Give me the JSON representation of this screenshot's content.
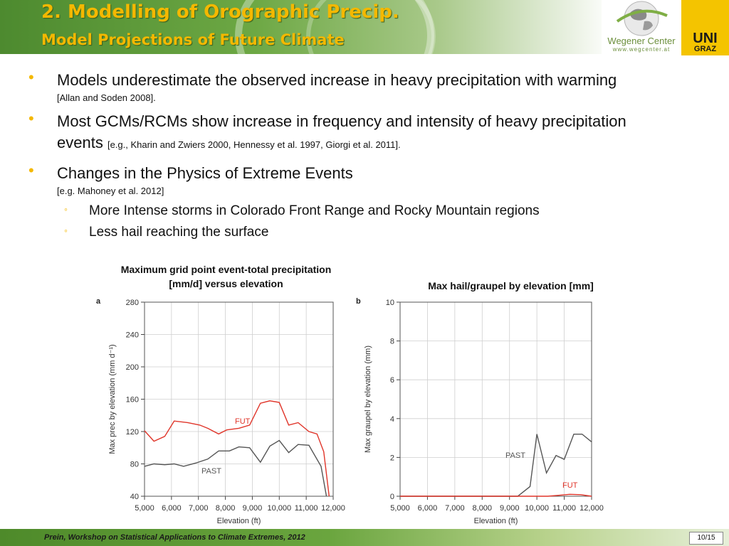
{
  "header": {
    "title_line1": "2. Modelling of Orographic Precip.",
    "title_line2": "Model Projections of Future Climate",
    "logo_name": "Wegener Center",
    "logo_url": "www.wegcenter.at",
    "uni_line1": "UNI",
    "uni_line2": "GRAZ"
  },
  "bullets": [
    {
      "text": "Models underestimate the observed increase in heavy precipitation with warming",
      "ref": "[Allan and Soden 2008]."
    },
    {
      "text": "Most GCMs/RCMs show increase in frequency and intensity of heavy precipitation events",
      "ref": "[e.g., Kharin and Zwiers 2000, Hennessy et al. 1997, Giorgi et al. 2011]."
    },
    {
      "text": "Changes in the Physics of Extreme Events",
      "ref": "[e.g. Mahoney et al. 2012]"
    }
  ],
  "sub_bullets": [
    "More Intense storms in Colorado Front Range and Rocky Mountain regions",
    "Less hail reaching the surface"
  ],
  "chart_titles": {
    "a_line1": "Maximum grid point event-total precipitation",
    "a_line2": "[mm/d] versus elevation",
    "b": "Max hail/graupel by elevation [mm]"
  },
  "footer": {
    "text": "Prein, Workshop on Statistical Applications to Climate Extremes, 2012",
    "page": "10/15"
  },
  "colors": {
    "past": "#555555",
    "fut": "#e0352a",
    "accent": "#f4b800"
  },
  "chart_data": [
    {
      "type": "line",
      "panel": "a",
      "xlabel": "Elevation (ft)",
      "ylabel": "Max prec by elevation (mm d⁻¹)",
      "xlim": [
        5000,
        12000
      ],
      "ylim": [
        40,
        280
      ],
      "xticks": [
        "5,000",
        "6,000",
        "7,000",
        "8,000",
        "9,000",
        "10,000",
        "11,000",
        "12,000"
      ],
      "yticks": [
        "40",
        "80",
        "120",
        "160",
        "200",
        "240",
        "280"
      ],
      "grid": true,
      "series": [
        {
          "name": "FUT",
          "x": [
            5000,
            5350,
            5750,
            6100,
            6600,
            7050,
            7350,
            7750,
            8050,
            8500,
            8900,
            9300,
            9650,
            10000,
            10350,
            10700,
            11100,
            11400,
            11650,
            11850
          ],
          "y": [
            121,
            108,
            114,
            133,
            131,
            128,
            124,
            117,
            122,
            124,
            128,
            155,
            158,
            156,
            128,
            131,
            120,
            117,
            95,
            40
          ]
        },
        {
          "name": "PAST",
          "x": [
            5000,
            5350,
            5750,
            6100,
            6450,
            6900,
            7350,
            7750,
            8150,
            8500,
            8900,
            9300,
            9650,
            10000,
            10350,
            10700,
            11100,
            11550,
            11750
          ],
          "y": [
            77,
            80,
            79,
            80,
            77,
            81,
            86,
            96,
            96,
            101,
            100,
            82,
            102,
            109,
            94,
            104,
            103,
            77,
            40
          ]
        }
      ]
    },
    {
      "type": "line",
      "panel": "b",
      "xlabel": "Elevation (ft)",
      "ylabel": "Max graupel by elevation (mm)",
      "xlim": [
        5000,
        12000
      ],
      "ylim": [
        0,
        10
      ],
      "xticks": [
        "5,000",
        "6,000",
        "7,000",
        "8,000",
        "9,000",
        "10,000",
        "11,000",
        "12,000"
      ],
      "yticks": [
        "0",
        "2",
        "4",
        "6",
        "8",
        "10"
      ],
      "grid": true,
      "series": [
        {
          "name": "PAST",
          "x": [
            5000,
            9300,
            9750,
            10000,
            10350,
            10700,
            11000,
            11350,
            11650,
            12000
          ],
          "y": [
            0,
            0,
            0.5,
            3.2,
            1.2,
            2.1,
            1.9,
            3.2,
            3.2,
            2.8
          ]
        },
        {
          "name": "FUT",
          "x": [
            5000,
            10400,
            10800,
            11200,
            11600,
            12000
          ],
          "y": [
            0,
            0,
            0.05,
            0.1,
            0.08,
            0
          ]
        }
      ]
    }
  ]
}
